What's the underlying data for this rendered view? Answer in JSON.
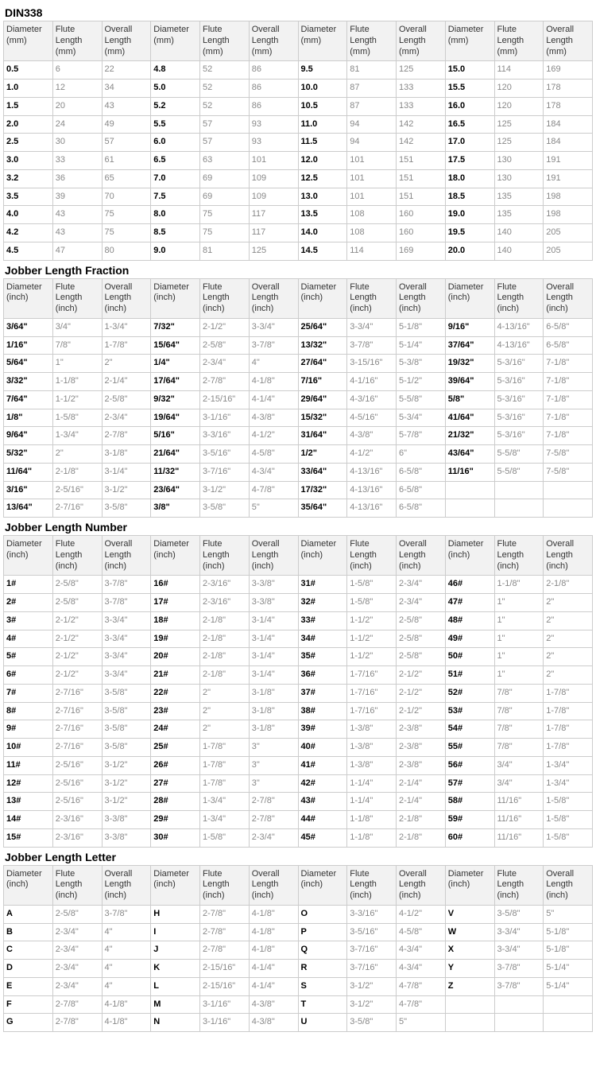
{
  "sections": [
    {
      "title": "DIN338",
      "headers": [
        "Diameter (mm)",
        "Flute Length (mm)",
        "Overall Length (mm)",
        "Diameter (mm)",
        "Flute Length (mm)",
        "Overall Length (mm)",
        "Diameter (mm)",
        "Flute Length (mm)",
        "Overall Length (mm)",
        "Diameter (mm)",
        "Flute Length (mm)",
        "Overall Length (mm)"
      ],
      "rows": [
        [
          "0.5",
          "6",
          "22",
          "4.8",
          "52",
          "86",
          "9.5",
          "81",
          "125",
          "15.0",
          "114",
          "169"
        ],
        [
          "1.0",
          "12",
          "34",
          "5.0",
          "52",
          "86",
          "10.0",
          "87",
          "133",
          "15.5",
          "120",
          "178"
        ],
        [
          "1.5",
          "20",
          "43",
          "5.2",
          "52",
          "86",
          "10.5",
          "87",
          "133",
          "16.0",
          "120",
          "178"
        ],
        [
          "2.0",
          "24",
          "49",
          "5.5",
          "57",
          "93",
          "11.0",
          "94",
          "142",
          "16.5",
          "125",
          "184"
        ],
        [
          "2.5",
          "30",
          "57",
          "6.0",
          "57",
          "93",
          "11.5",
          "94",
          "142",
          "17.0",
          "125",
          "184"
        ],
        [
          "3.0",
          "33",
          "61",
          "6.5",
          "63",
          "101",
          "12.0",
          "101",
          "151",
          "17.5",
          "130",
          "191"
        ],
        [
          "3.2",
          "36",
          "65",
          "7.0",
          "69",
          "109",
          "12.5",
          "101",
          "151",
          "18.0",
          "130",
          "191"
        ],
        [
          "3.5",
          "39",
          "70",
          "7.5",
          "69",
          "109",
          "13.0",
          "101",
          "151",
          "18.5",
          "135",
          "198"
        ],
        [
          "4.0",
          "43",
          "75",
          "8.0",
          "75",
          "117",
          "13.5",
          "108",
          "160",
          "19.0",
          "135",
          "198"
        ],
        [
          "4.2",
          "43",
          "75",
          "8.5",
          "75",
          "117",
          "14.0",
          "108",
          "160",
          "19.5",
          "140",
          "205"
        ],
        [
          "4.5",
          "47",
          "80",
          "9.0",
          "81",
          "125",
          "14.5",
          "114",
          "169",
          "20.0",
          "140",
          "205"
        ]
      ]
    },
    {
      "title": "Jobber Length  Fraction",
      "headers": [
        "Diameter (inch)",
        "Flute Length (inch)",
        "Overall Length (inch)",
        "Diameter (inch)",
        "Flute Length (inch)",
        "Overall Length (inch)",
        "Diameter (inch)",
        "Flute Length (inch)",
        "Overall Length (inch)",
        "Diameter (inch)",
        "Flute Length (inch)",
        "Overall Length (inch)"
      ],
      "rows": [
        [
          "3/64\"",
          "3/4\"",
          "1-3/4\"",
          "7/32\"",
          "2-1/2\"",
          "3-3/4\"",
          "25/64\"",
          "3-3/4\"",
          "5-1/8\"",
          "9/16\"",
          "4-13/16\"",
          "6-5/8\""
        ],
        [
          "1/16\"",
          "7/8\"",
          "1-7/8\"",
          "15/64\"",
          "2-5/8\"",
          "3-7/8\"",
          "13/32\"",
          "3-7/8\"",
          "5-1/4\"",
          "37/64\"",
          "4-13/16\"",
          "6-5/8\""
        ],
        [
          "5/64\"",
          "1\"",
          "2\"",
          "1/4\"",
          "2-3/4\"",
          "4\"",
          "27/64\"",
          "3-15/16\"",
          "5-3/8\"",
          "19/32\"",
          "5-3/16\"",
          "7-1/8\""
        ],
        [
          "3/32\"",
          "1-1/8\"",
          "2-1/4\"",
          "17/64\"",
          "2-7/8\"",
          "4-1/8\"",
          "7/16\"",
          "4-1/16\"",
          "5-1/2\"",
          "39/64\"",
          "5-3/16\"",
          "7-1/8\""
        ],
        [
          "7/64\"",
          "1-1/2\"",
          "2-5/8\"",
          "9/32\"",
          "2-15/16\"",
          "4-1/4\"",
          "29/64\"",
          "4-3/16\"",
          "5-5/8\"",
          "5/8\"",
          "5-3/16\"",
          "7-1/8\""
        ],
        [
          "1/8\"",
          "1-5/8\"",
          "2-3/4\"",
          "19/64\"",
          "3-1/16\"",
          "4-3/8\"",
          "15/32\"",
          "4-5/16\"",
          "5-3/4\"",
          "41/64\"",
          "5-3/16\"",
          "7-1/8\""
        ],
        [
          "9/64\"",
          "1-3/4\"",
          "2-7/8\"",
          "5/16\"",
          "3-3/16\"",
          "4-1/2\"",
          "31/64\"",
          "4-3/8\"",
          "5-7/8\"",
          "21/32\"",
          "5-3/16\"",
          "7-1/8\""
        ],
        [
          "5/32\"",
          "2\"",
          "3-1/8\"",
          "21/64\"",
          "3-5/16\"",
          "4-5/8\"",
          "1/2\"",
          "4-1/2\"",
          "6\"",
          "43/64\"",
          "5-5/8\"",
          "7-5/8\""
        ],
        [
          "11/64\"",
          "2-1/8\"",
          "3-1/4\"",
          "11/32\"",
          "3-7/16\"",
          "4-3/4\"",
          "33/64\"",
          "4-13/16\"",
          "6-5/8\"",
          "11/16\"",
          "5-5/8\"",
          "7-5/8\""
        ],
        [
          "3/16\"",
          "2-5/16\"",
          "3-1/2\"",
          "23/64\"",
          "3-1/2\"",
          "4-7/8\"",
          "17/32\"",
          "4-13/16\"",
          "6-5/8\"",
          "",
          "",
          ""
        ],
        [
          "13/64\"",
          "2-7/16\"",
          "3-5/8\"",
          "3/8\"",
          "3-5/8\"",
          "5\"",
          "35/64\"",
          "4-13/16\"",
          "6-5/8\"",
          "",
          "",
          ""
        ]
      ]
    },
    {
      "title": "Jobber Length Number",
      "headers": [
        "Diameter (inch)",
        "Flute Length (inch)",
        "Overall Length (inch)",
        "Diameter (inch)",
        "Flute Length (inch)",
        "Overall Length (inch)",
        "Diameter (inch)",
        "Flute Length (inch)",
        "Overall Length (inch)",
        "Diameter (inch)",
        "Flute Length (inch)",
        "Overall Length (inch)"
      ],
      "rows": [
        [
          "1#",
          "2-5/8\"",
          "3-7/8\"",
          "16#",
          "2-3/16\"",
          "3-3/8\"",
          "31#",
          "1-5/8\"",
          "2-3/4\"",
          "46#",
          "1-1/8\"",
          "2-1/8\""
        ],
        [
          "2#",
          "2-5/8\"",
          "3-7/8\"",
          "17#",
          "2-3/16\"",
          "3-3/8\"",
          "32#",
          "1-5/8\"",
          "2-3/4\"",
          "47#",
          "1\"",
          "2\""
        ],
        [
          "3#",
          "2-1/2\"",
          "3-3/4\"",
          "18#",
          "2-1/8\"",
          "3-1/4\"",
          "33#",
          "1-1/2\"",
          "2-5/8\"",
          "48#",
          "1\"",
          "2\""
        ],
        [
          "4#",
          "2-1/2\"",
          "3-3/4\"",
          "19#",
          "2-1/8\"",
          "3-1/4\"",
          "34#",
          "1-1/2\"",
          "2-5/8\"",
          "49#",
          "1\"",
          "2\""
        ],
        [
          "5#",
          "2-1/2\"",
          "3-3/4\"",
          "20#",
          "2-1/8\"",
          "3-1/4\"",
          "35#",
          "1-1/2\"",
          "2-5/8\"",
          "50#",
          "1\"",
          "2\""
        ],
        [
          "6#",
          "2-1/2\"",
          "3-3/4\"",
          "21#",
          "2-1/8\"",
          "3-1/4\"",
          "36#",
          "1-7/16\"",
          "2-1/2\"",
          "51#",
          "1\"",
          "2\""
        ],
        [
          "7#",
          "2-7/16\"",
          "3-5/8\"",
          "22#",
          "2\"",
          "3-1/8\"",
          "37#",
          "1-7/16\"",
          "2-1/2\"",
          "52#",
          "7/8\"",
          "1-7/8\""
        ],
        [
          "8#",
          "2-7/16\"",
          "3-5/8\"",
          "23#",
          "2\"",
          "3-1/8\"",
          "38#",
          "1-7/16\"",
          "2-1/2\"",
          "53#",
          "7/8\"",
          "1-7/8\""
        ],
        [
          "9#",
          "2-7/16\"",
          "3-5/8\"",
          "24#",
          "2\"",
          "3-1/8\"",
          "39#",
          "1-3/8\"",
          "2-3/8\"",
          "54#",
          "7/8\"",
          "1-7/8\""
        ],
        [
          "10#",
          "2-7/16\"",
          "3-5/8\"",
          "25#",
          "1-7/8\"",
          "3\"",
          "40#",
          "1-3/8\"",
          "2-3/8\"",
          "55#",
          "7/8\"",
          "1-7/8\""
        ],
        [
          "11#",
          "2-5/16\"",
          "3-1/2\"",
          "26#",
          "1-7/8\"",
          "3\"",
          "41#",
          "1-3/8\"",
          "2-3/8\"",
          "56#",
          "3/4\"",
          "1-3/4\""
        ],
        [
          "12#",
          "2-5/16\"",
          "3-1/2\"",
          "27#",
          "1-7/8\"",
          "3\"",
          "42#",
          "1-1/4\"",
          "2-1/4\"",
          "57#",
          "3/4\"",
          "1-3/4\""
        ],
        [
          "13#",
          "2-5/16\"",
          "3-1/2\"",
          "28#",
          "1-3/4\"",
          "2-7/8\"",
          "43#",
          "1-1/4\"",
          "2-1/4\"",
          "58#",
          "11/16\"",
          "1-5/8\""
        ],
        [
          "14#",
          "2-3/16\"",
          "3-3/8\"",
          "29#",
          "1-3/4\"",
          "2-7/8\"",
          "44#",
          "1-1/8\"",
          "2-1/8\"",
          "59#",
          "11/16\"",
          "1-5/8\""
        ],
        [
          "15#",
          "2-3/16\"",
          "3-3/8\"",
          "30#",
          "1-5/8\"",
          "2-3/4\"",
          "45#",
          "1-1/8\"",
          "2-1/8\"",
          "60#",
          "11/16\"",
          "1-5/8\""
        ]
      ]
    },
    {
      "title": "Jobber Length Letter",
      "headers": [
        "Diameter (inch)",
        "Flute Length (inch)",
        "Overall Length (inch)",
        "Diameter (inch)",
        "Flute Length (inch)",
        "Overall Length (inch)",
        "Diameter (inch)",
        "Flute Length (inch)",
        "Overall Length (inch)",
        "Diameter (inch)",
        "Flute Length (inch)",
        "Overall Length (inch)"
      ],
      "rows": [
        [
          "A",
          "2-5/8\"",
          "3-7/8\"",
          "H",
          "2-7/8\"",
          "4-1/8\"",
          "O",
          "3-3/16\"",
          "4-1/2\"",
          "V",
          "3-5/8\"",
          "5\""
        ],
        [
          "B",
          "2-3/4\"",
          "4\"",
          "I",
          "2-7/8\"",
          "4-1/8\"",
          "P",
          "3-5/16\"",
          "4-5/8\"",
          "W",
          "3-3/4\"",
          "5-1/8\""
        ],
        [
          "C",
          "2-3/4\"",
          "4\"",
          "J",
          "2-7/8\"",
          "4-1/8\"",
          "Q",
          "3-7/16\"",
          "4-3/4\"",
          "X",
          "3-3/4\"",
          "5-1/8\""
        ],
        [
          "D",
          "2-3/4\"",
          "4\"",
          "K",
          "2-15/16\"",
          "4-1/4\"",
          "R",
          "3-7/16\"",
          "4-3/4\"",
          "Y",
          "3-7/8\"",
          "5-1/4\""
        ],
        [
          "E",
          "2-3/4\"",
          "4\"",
          "L",
          "2-15/16\"",
          "4-1/4\"",
          "S",
          "3-1/2\"",
          "4-7/8\"",
          "Z",
          "3-7/8\"",
          "5-1/4\""
        ],
        [
          "F",
          "2-7/8\"",
          "4-1/8\"",
          "M",
          "3-1/16\"",
          "4-3/8\"",
          "T",
          "3-1/2\"",
          "4-7/8\"",
          "",
          "",
          ""
        ],
        [
          "G",
          "2-7/8\"",
          "4-1/8\"",
          "N",
          "3-1/16\"",
          "4-3/8\"",
          "U",
          "3-5/8\"",
          "5\"",
          "",
          "",
          ""
        ]
      ]
    }
  ]
}
